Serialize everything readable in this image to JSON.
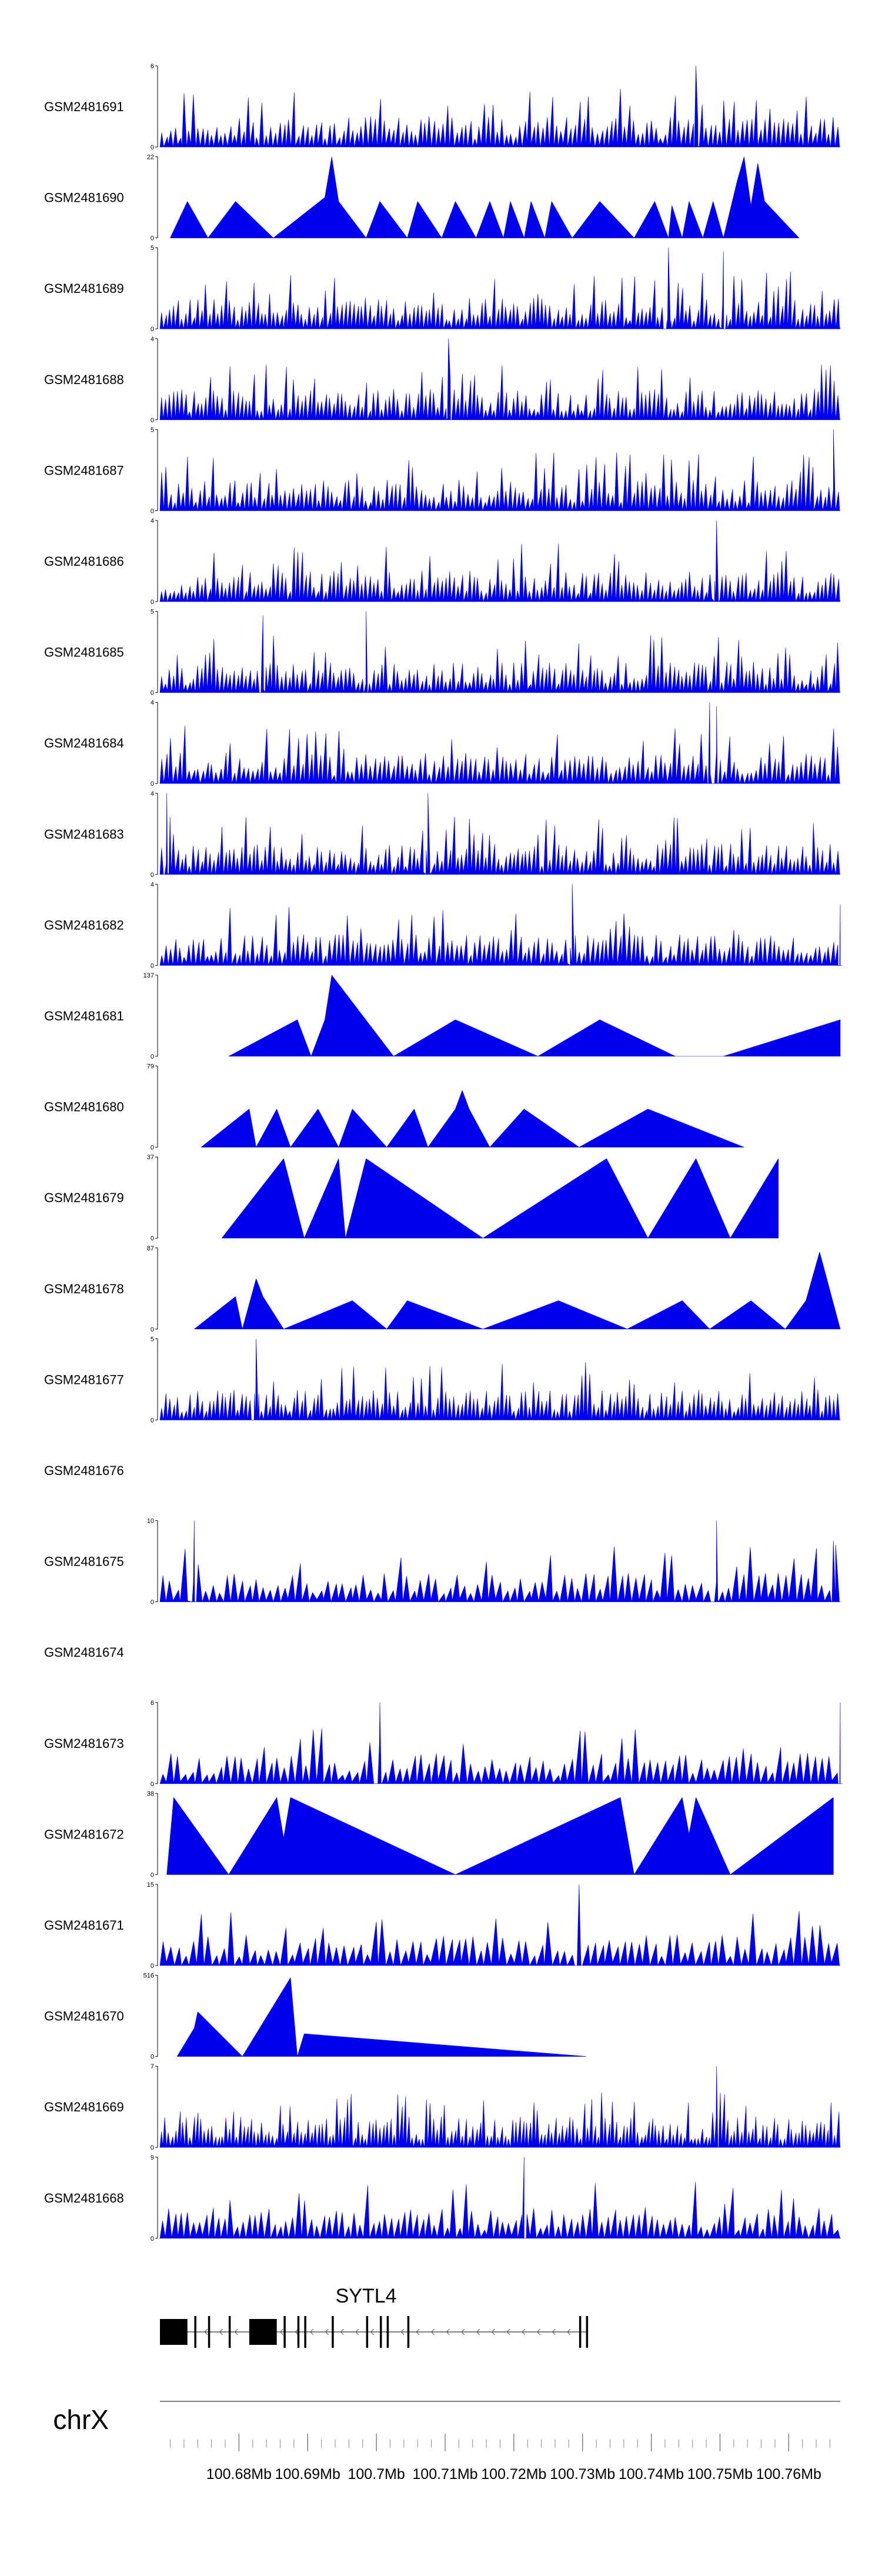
{
  "chart_data": {
    "type": "area",
    "chromosome": "chrX",
    "gene": "SYTL4",
    "fill_color": "#0000ee",
    "x_range": [
      100.6685,
      100.7675
    ],
    "x_ticks": [
      100.68,
      100.69,
      100.7,
      100.71,
      100.72,
      100.73,
      100.74,
      100.75,
      100.76
    ],
    "x_tick_labels": [
      "100.68Mb",
      "100.69Mb",
      "100.7Mb",
      "100.71Mb",
      "100.72Mb",
      "100.73Mb",
      "100.74Mb",
      "100.75Mb",
      "100.76Mb"
    ],
    "tracks": [
      {
        "name": "GSM2481691",
        "ymax": 6,
        "y_labels": [
          "6",
          "0"
        ],
        "style": "dense",
        "seed": 11,
        "count": 150,
        "start": 100.6685,
        "end": 100.7675,
        "peaks": [
          [
            100.7465,
            1.0
          ]
        ]
      },
      {
        "name": "GSM2481690",
        "ymax": 22,
        "y_labels": [
          "22",
          "0"
        ],
        "style": "sparse",
        "points": [
          [
            100.67,
            0
          ],
          [
            100.6725,
            0.45
          ],
          [
            100.6755,
            0
          ],
          [
            100.6795,
            0.45
          ],
          [
            100.685,
            0
          ],
          [
            100.6925,
            0.5
          ],
          [
            100.6935,
            1.0
          ],
          [
            100.6945,
            0.45
          ],
          [
            100.6985,
            0
          ],
          [
            100.7005,
            0.45
          ],
          [
            100.7045,
            0
          ],
          [
            100.706,
            0.45
          ],
          [
            100.7095,
            0
          ],
          [
            100.7115,
            0.45
          ],
          [
            100.7145,
            0
          ],
          [
            100.7165,
            0.45
          ],
          [
            100.7185,
            0
          ],
          [
            100.7195,
            0.45
          ],
          [
            100.7215,
            0
          ],
          [
            100.7225,
            0.45
          ],
          [
            100.7245,
            0
          ],
          [
            100.7255,
            0.45
          ],
          [
            100.7285,
            0
          ],
          [
            100.7325,
            0.45
          ],
          [
            100.7375,
            0
          ],
          [
            100.7405,
            0.45
          ],
          [
            100.7425,
            0
          ],
          [
            100.743,
            0.4
          ],
          [
            100.7445,
            0
          ],
          [
            100.7455,
            0.45
          ],
          [
            100.7475,
            0
          ],
          [
            100.749,
            0.45
          ],
          [
            100.7505,
            0
          ],
          [
            100.7525,
            0.7
          ],
          [
            100.7535,
            1.0
          ],
          [
            100.7545,
            0.4
          ],
          [
            100.7555,
            0.92
          ],
          [
            100.7565,
            0.45
          ],
          [
            100.7615,
            0
          ]
        ]
      },
      {
        "name": "GSM2481689",
        "ymax": 5,
        "y_labels": [
          "5",
          "0"
        ],
        "style": "dense",
        "seed": 23,
        "count": 170,
        "start": 100.6685,
        "end": 100.7675,
        "peaks": [
          [
            100.7425,
            1.0
          ],
          [
            100.7505,
            0.95
          ]
        ]
      },
      {
        "name": "GSM2481688",
        "ymax": 4,
        "y_labels": [
          "4",
          "0"
        ],
        "style": "dense",
        "seed": 37,
        "count": 170,
        "start": 100.6685,
        "end": 100.7675,
        "peaks": [
          [
            100.7105,
            1.0
          ]
        ]
      },
      {
        "name": "GSM2481687",
        "ymax": 5,
        "y_labels": [
          "5",
          "0"
        ],
        "style": "dense",
        "seed": 41,
        "count": 160,
        "start": 100.6685,
        "end": 100.7675,
        "peaks": [
          [
            100.7665,
            1.0
          ]
        ]
      },
      {
        "name": "GSM2481686",
        "ymax": 4,
        "y_labels": [
          "4",
          "0"
        ],
        "style": "dense",
        "seed": 53,
        "count": 170,
        "start": 100.6685,
        "end": 100.7675,
        "peaks": [
          [
            100.7495,
            1.0
          ]
        ]
      },
      {
        "name": "GSM2481685",
        "ymax": 5,
        "y_labels": [
          "5",
          "0"
        ],
        "style": "dense",
        "seed": 67,
        "count": 170,
        "start": 100.6685,
        "end": 100.7675,
        "peaks": [
          [
            100.6835,
            0.95
          ],
          [
            100.6985,
            1.0
          ]
        ]
      },
      {
        "name": "GSM2481684",
        "ymax": 4,
        "y_labels": [
          "4",
          "0"
        ],
        "style": "dense",
        "seed": 71,
        "count": 150,
        "start": 100.6685,
        "end": 100.7675,
        "peaks": [
          [
            100.7485,
            1.0
          ],
          [
            100.7495,
            0.95
          ]
        ]
      },
      {
        "name": "GSM2481683",
        "ymax": 4,
        "y_labels": [
          "4",
          "0"
        ],
        "style": "dense",
        "seed": 83,
        "count": 170,
        "start": 100.6685,
        "end": 100.7675,
        "peaks": [
          [
            100.6695,
            1.0
          ],
          [
            100.7075,
            1.0
          ]
        ]
      },
      {
        "name": "GSM2481682",
        "ymax": 4,
        "y_labels": [
          "4",
          "0"
        ],
        "style": "dense",
        "seed": 97,
        "count": 150,
        "start": 100.6685,
        "end": 100.7675,
        "peaks": [
          [
            100.7285,
            1.0
          ],
          [
            100.7675,
            0.75
          ]
        ]
      },
      {
        "name": "GSM2481681",
        "ymax": 137,
        "y_labels": [
          "137",
          "0"
        ],
        "style": "sparse",
        "points": [
          [
            100.6785,
            0
          ],
          [
            100.6885,
            0.45
          ],
          [
            100.6905,
            0
          ],
          [
            100.6925,
            0.45
          ],
          [
            100.6935,
            1.0
          ],
          [
            100.7025,
            0
          ],
          [
            100.7115,
            0.45
          ],
          [
            100.7235,
            0
          ],
          [
            100.7325,
            0.45
          ],
          [
            100.7435,
            0
          ],
          [
            100.7505,
            0
          ],
          [
            100.7675,
            0.45
          ]
        ]
      },
      {
        "name": "GSM2481680",
        "ymax": 79,
        "y_labels": [
          "79",
          "0"
        ],
        "style": "sparse",
        "points": [
          [
            100.6745,
            0
          ],
          [
            100.6815,
            0.47
          ],
          [
            100.6825,
            0
          ],
          [
            100.6855,
            0.47
          ],
          [
            100.6875,
            0
          ],
          [
            100.6915,
            0.47
          ],
          [
            100.6945,
            0
          ],
          [
            100.6965,
            0.47
          ],
          [
            100.7015,
            0
          ],
          [
            100.7055,
            0.47
          ],
          [
            100.7075,
            0
          ],
          [
            100.7115,
            0.47
          ],
          [
            100.7125,
            0.7
          ],
          [
            100.7135,
            0.47
          ],
          [
            100.7165,
            0
          ],
          [
            100.7215,
            0.47
          ],
          [
            100.7295,
            0
          ],
          [
            100.7395,
            0.47
          ],
          [
            100.7535,
            0
          ]
        ]
      },
      {
        "name": "GSM2481679",
        "ymax": 37,
        "y_labels": [
          "37",
          "0"
        ],
        "style": "sparse",
        "points": [
          [
            100.6775,
            0
          ],
          [
            100.6865,
            0.98
          ],
          [
            100.6895,
            0
          ],
          [
            100.6945,
            0.98
          ],
          [
            100.6955,
            0
          ],
          [
            100.6985,
            0.98
          ],
          [
            100.7155,
            0
          ],
          [
            100.7335,
            0.98
          ],
          [
            100.7395,
            0
          ],
          [
            100.7465,
            0.98
          ],
          [
            100.7515,
            0
          ],
          [
            100.7585,
            0.98
          ]
        ]
      },
      {
        "name": "GSM2481678",
        "ymax": 87,
        "y_labels": [
          "87",
          "0"
        ],
        "style": "sparse",
        "points": [
          [
            100.6735,
            0
          ],
          [
            100.6795,
            0.4
          ],
          [
            100.6805,
            0
          ],
          [
            100.6825,
            0.62
          ],
          [
            100.6835,
            0.4
          ],
          [
            100.6865,
            0
          ],
          [
            100.6965,
            0.35
          ],
          [
            100.7015,
            0
          ],
          [
            100.7045,
            0.35
          ],
          [
            100.7155,
            0
          ],
          [
            100.7265,
            0.35
          ],
          [
            100.7365,
            0
          ],
          [
            100.7445,
            0.35
          ],
          [
            100.7485,
            0
          ],
          [
            100.7545,
            0.35
          ],
          [
            100.7595,
            0
          ],
          [
            100.7625,
            0.35
          ],
          [
            100.7645,
            0.95
          ],
          [
            100.7675,
            0
          ]
        ]
      },
      {
        "name": "GSM2481677",
        "ymax": 5,
        "y_labels": [
          "5",
          "0"
        ],
        "style": "dense",
        "seed": 131,
        "count": 170,
        "start": 100.6685,
        "end": 100.7675,
        "peaks": [
          [
            100.6825,
            1.0
          ]
        ]
      },
      {
        "name": "GSM2481676",
        "ymax": 0,
        "y_labels": [],
        "style": "empty"
      },
      {
        "name": "GSM2481675",
        "ymax": 10,
        "y_labels": [
          "10",
          "0"
        ],
        "style": "dense",
        "seed": 149,
        "count": 95,
        "start": 100.6685,
        "end": 100.7675,
        "peaks": [
          [
            100.6735,
            1.0
          ],
          [
            100.7495,
            1.0
          ],
          [
            100.7665,
            0.75
          ]
        ]
      },
      {
        "name": "GSM2481674",
        "ymax": 0,
        "y_labels": [],
        "style": "empty"
      },
      {
        "name": "GSM2481673",
        "ymax": 6,
        "y_labels": [
          "6",
          "0"
        ],
        "style": "dense",
        "seed": 163,
        "count": 95,
        "start": 100.6685,
        "end": 100.7675,
        "peaks": [
          [
            100.7005,
            1.0
          ],
          [
            100.7675,
            1.0
          ]
        ]
      },
      {
        "name": "GSM2481672",
        "ymax": 38,
        "y_labels": [
          "38",
          "0"
        ],
        "style": "sparse",
        "points": [
          [
            100.6695,
            0
          ],
          [
            100.6705,
            0.95
          ],
          [
            100.6785,
            0
          ],
          [
            100.6855,
            0.95
          ],
          [
            100.6865,
            0.45
          ],
          [
            100.6875,
            0.95
          ],
          [
            100.7115,
            0
          ],
          [
            100.7355,
            0.95
          ],
          [
            100.7375,
            0
          ],
          [
            100.7445,
            0.95
          ],
          [
            100.7455,
            0.5
          ],
          [
            100.7465,
            0.95
          ],
          [
            100.7515,
            0
          ],
          [
            100.7665,
            0.95
          ]
        ]
      },
      {
        "name": "GSM2481671",
        "ymax": 15,
        "y_labels": [
          "15",
          "0"
        ],
        "style": "dense",
        "seed": 181,
        "count": 90,
        "start": 100.6685,
        "end": 100.7675,
        "peaks": [
          [
            100.7295,
            1.0
          ]
        ]
      },
      {
        "name": "GSM2481670",
        "ymax": 516,
        "y_labels": [
          "516",
          "0"
        ],
        "style": "sparse",
        "points": [
          [
            100.671,
            0
          ],
          [
            100.6735,
            0.35
          ],
          [
            100.674,
            0.55
          ],
          [
            100.6805,
            0
          ],
          [
            100.6875,
            0.97
          ],
          [
            100.6885,
            0
          ],
          [
            100.6895,
            0.28
          ],
          [
            100.7305,
            0
          ]
        ]
      },
      {
        "name": "GSM2481669",
        "ymax": 7,
        "y_labels": [
          "7",
          "0"
        ],
        "style": "dense",
        "seed": 199,
        "count": 190,
        "start": 100.6685,
        "end": 100.7675,
        "peaks": [
          [
            100.7495,
            1.0
          ]
        ]
      },
      {
        "name": "GSM2481668",
        "ymax": 9,
        "y_labels": [
          "9",
          "0"
        ],
        "style": "dense",
        "seed": 211,
        "count": 110,
        "start": 100.6685,
        "end": 100.7675,
        "peaks": [
          [
            100.7215,
            1.0
          ]
        ]
      }
    ],
    "gene_model": {
      "start": 100.6685,
      "end": 100.7305,
      "strand": "-",
      "exons": [
        [
          100.6685,
          100.6725
        ],
        [
          100.6735,
          100.6738
        ],
        [
          100.6755,
          100.6758
        ],
        [
          100.6785,
          100.6788
        ],
        [
          100.6815,
          100.6855
        ],
        [
          100.6865,
          100.6868
        ],
        [
          100.6885,
          100.6888
        ],
        [
          100.6895,
          100.6898
        ],
        [
          100.6935,
          100.6938
        ],
        [
          100.6985,
          100.6988
        ],
        [
          100.7005,
          100.7008
        ],
        [
          100.7015,
          100.7018
        ],
        [
          100.7045,
          100.7048
        ],
        [
          100.7295,
          100.7298
        ],
        [
          100.7305,
          100.7308
        ]
      ]
    }
  }
}
